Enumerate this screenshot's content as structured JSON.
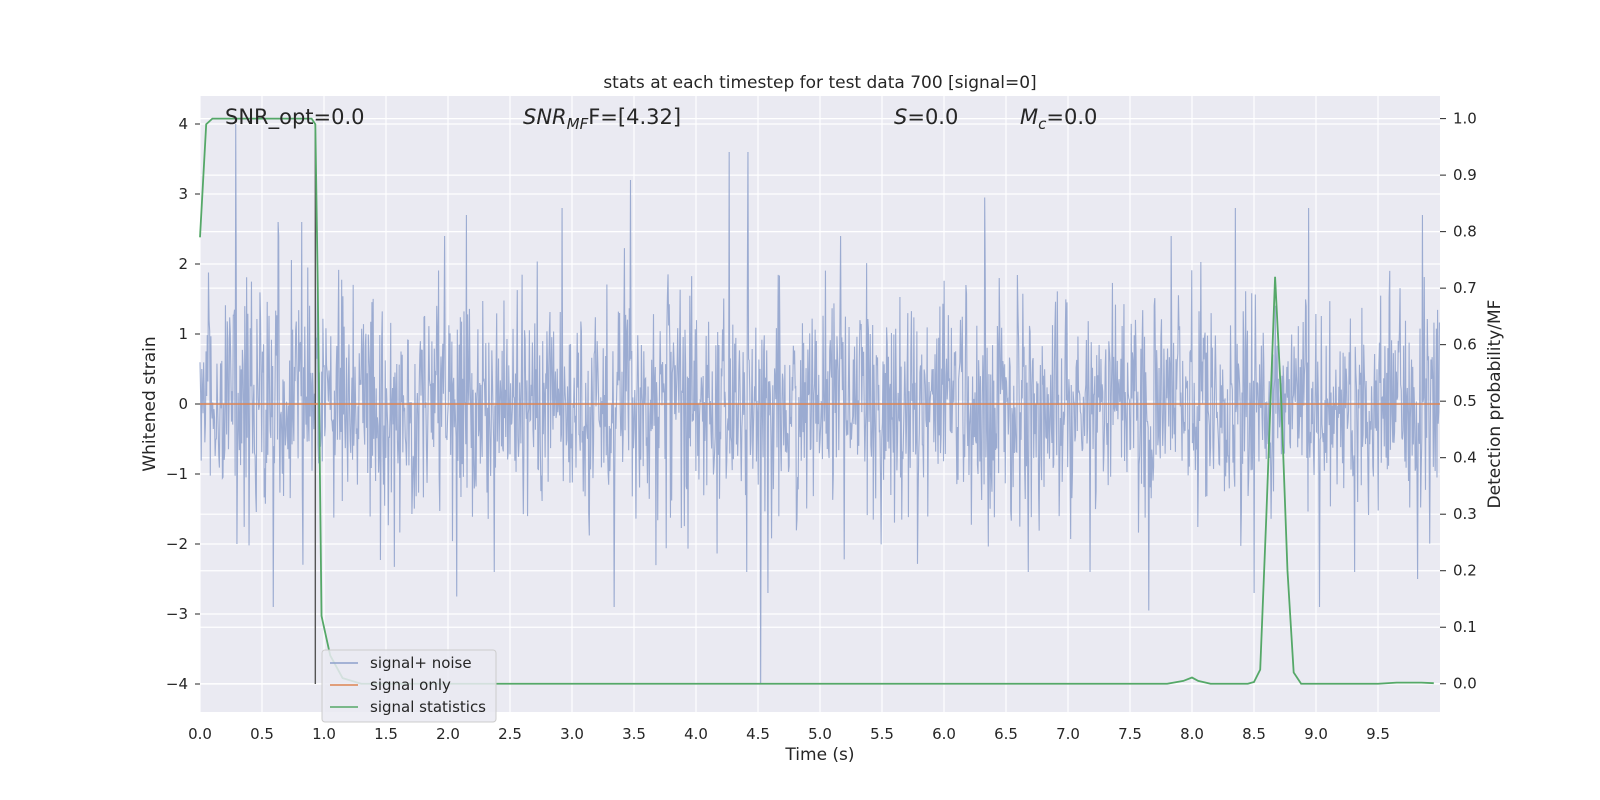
{
  "chart_data": {
    "type": "line",
    "title": "stats at each timestep for test data 700 [signal=0]",
    "xlabel": "Time (s)",
    "ylabel_left": "Whitened strain",
    "ylabel_right": "Detection probability/MF",
    "xlim": [
      0.0,
      10.0
    ],
    "ylim_left": [
      -4.4,
      4.4
    ],
    "ylim_right": [
      -0.05,
      1.04
    ],
    "x_ticks": [
      0.0,
      0.5,
      1.0,
      1.5,
      2.0,
      2.5,
      3.0,
      3.5,
      4.0,
      4.5,
      5.0,
      5.5,
      6.0,
      6.5,
      7.0,
      7.5,
      8.0,
      8.5,
      9.0,
      9.5
    ],
    "x_tick_labels": [
      "0.0",
      "0.5",
      "1.0",
      "1.5",
      "2.0",
      "2.5",
      "3.0",
      "3.5",
      "4.0",
      "4.5",
      "5.0",
      "5.5",
      "6.0",
      "6.5",
      "7.0",
      "7.5",
      "8.0",
      "8.5",
      "9.0",
      "9.5"
    ],
    "y_ticks_left": [
      4,
      3,
      2,
      1,
      0,
      -1,
      -2,
      -3,
      -4
    ],
    "y_tick_labels_left": [
      "4",
      "3",
      "2",
      "1",
      "0",
      "−1",
      "−2",
      "−3",
      "−4"
    ],
    "y_ticks_right": [
      1.0,
      0.9,
      0.8,
      0.7,
      0.6,
      0.5,
      0.4,
      0.3,
      0.2,
      0.1,
      0.0
    ],
    "y_tick_labels_right": [
      "1.0",
      "0.9",
      "0.8",
      "0.7",
      "0.6",
      "0.5",
      "0.4",
      "0.3",
      "0.2",
      "0.1",
      "0.0"
    ],
    "grid": true,
    "legend": {
      "placement": "lower-left",
      "entries": [
        {
          "label": "signal+ noise",
          "color": "#8da0cb"
        },
        {
          "label": "signal only",
          "color": "#dd8452"
        },
        {
          "label": "signal statistics",
          "color": "#55a868"
        }
      ]
    },
    "annotations": {
      "snr_opt": "SNR_opt=0.0",
      "snr_mf_main": "SNR",
      "snr_mf_sub": "MF",
      "snr_mf_value": "F=[4.32]",
      "s_main": "S",
      "s_value": "=0.0",
      "mc_main": "M",
      "mc_sub": "c",
      "mc_value": "=0.0"
    },
    "series": [
      {
        "name": "signal+ noise",
        "axis": "left",
        "color": "#8da0cb",
        "description_of_envelope": "dense noise, typical band ±0.8, spikes to ±2.5",
        "spikes": [
          {
            "x": 0.29,
            "y": 4.0
          },
          {
            "x": 0.3,
            "y": -2.0
          },
          {
            "x": 0.59,
            "y": -2.9
          },
          {
            "x": 0.63,
            "y": 2.6
          },
          {
            "x": 0.82,
            "y": 2.6
          },
          {
            "x": 2.07,
            "y": -2.75
          },
          {
            "x": 2.15,
            "y": 2.7
          },
          {
            "x": 2.92,
            "y": 2.8
          },
          {
            "x": 3.34,
            "y": -2.9
          },
          {
            "x": 3.47,
            "y": 3.2
          },
          {
            "x": 4.27,
            "y": 3.6
          },
          {
            "x": 4.42,
            "y": 3.6
          },
          {
            "x": 4.52,
            "y": -4.0
          },
          {
            "x": 4.58,
            "y": -2.7
          },
          {
            "x": 6.33,
            "y": 2.95
          },
          {
            "x": 7.65,
            "y": -2.95
          },
          {
            "x": 8.35,
            "y": 2.8
          },
          {
            "x": 8.5,
            "y": -2.7
          },
          {
            "x": 8.94,
            "y": 2.8
          },
          {
            "x": 9.03,
            "y": -2.9
          },
          {
            "x": 9.86,
            "y": 2.7
          },
          {
            "x": 9.82,
            "y": -2.5
          }
        ],
        "vertical_marker": {
          "x": 0.93,
          "y_from": -4.0,
          "y_to": 4.0
        }
      },
      {
        "name": "signal only",
        "axis": "left",
        "color": "#dd8452",
        "x": [
          0.0,
          10.0
        ],
        "y": [
          0.0,
          0.0
        ]
      },
      {
        "name": "signal statistics",
        "axis": "right",
        "color": "#55a868",
        "x": [
          0.0,
          0.05,
          0.1,
          0.2,
          0.3,
          0.4,
          0.5,
          0.6,
          0.7,
          0.8,
          0.9,
          0.93,
          0.95,
          0.98,
          1.05,
          1.15,
          1.3,
          1.5,
          2.0,
          3.0,
          4.0,
          5.0,
          6.0,
          7.0,
          7.8,
          7.93,
          8.0,
          8.05,
          8.15,
          8.3,
          8.45,
          8.5,
          8.55,
          8.6,
          8.67,
          8.72,
          8.77,
          8.82,
          8.88,
          8.95,
          9.1,
          9.3,
          9.5,
          9.65,
          9.85,
          9.95
        ],
        "y": [
          0.79,
          0.99,
          1.0,
          1.0,
          1.0,
          1.0,
          1.0,
          1.0,
          1.0,
          1.0,
          1.0,
          0.99,
          0.7,
          0.12,
          0.05,
          0.01,
          0.0,
          0.0,
          0.0,
          0.0,
          0.0,
          0.0,
          0.0,
          0.0,
          0.0,
          0.005,
          0.011,
          0.005,
          0.0,
          0.0,
          0.0,
          0.003,
          0.025,
          0.3,
          0.72,
          0.5,
          0.2,
          0.02,
          0.0,
          0.0,
          0.0,
          0.0,
          0.0,
          0.002,
          0.002,
          0.001
        ]
      }
    ]
  }
}
